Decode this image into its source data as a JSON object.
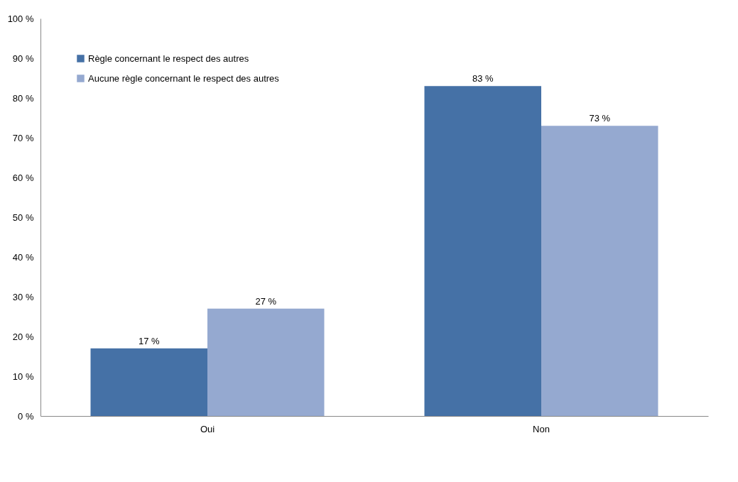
{
  "chart_data": {
    "type": "bar",
    "categories": [
      "Oui",
      "Non"
    ],
    "series": [
      {
        "name": "Règle concernant le respect des autres",
        "color": "#4571a6",
        "values": [
          17,
          83
        ],
        "value_labels": [
          "17 %",
          "83 %"
        ]
      },
      {
        "name": "Aucune règle concernant le respect des autres",
        "color": "#95a9d0",
        "values": [
          27,
          73
        ],
        "value_labels": [
          "27 %",
          "73 %"
        ]
      }
    ],
    "ylim": [
      0,
      100
    ],
    "yticks": [
      {
        "value": 0,
        "label": "0 %"
      },
      {
        "value": 10,
        "label": "10 %"
      },
      {
        "value": 20,
        "label": "20 %"
      },
      {
        "value": 30,
        "label": "30 %"
      },
      {
        "value": 40,
        "label": "40 %"
      },
      {
        "value": 50,
        "label": "50 %"
      },
      {
        "value": 60,
        "label": "60 %"
      },
      {
        "value": 70,
        "label": "70 %"
      },
      {
        "value": 80,
        "label": "80 %"
      },
      {
        "value": 90,
        "label": "90 %"
      },
      {
        "value": 100,
        "label": "100 %"
      }
    ],
    "grid": false,
    "legend": "top left"
  }
}
